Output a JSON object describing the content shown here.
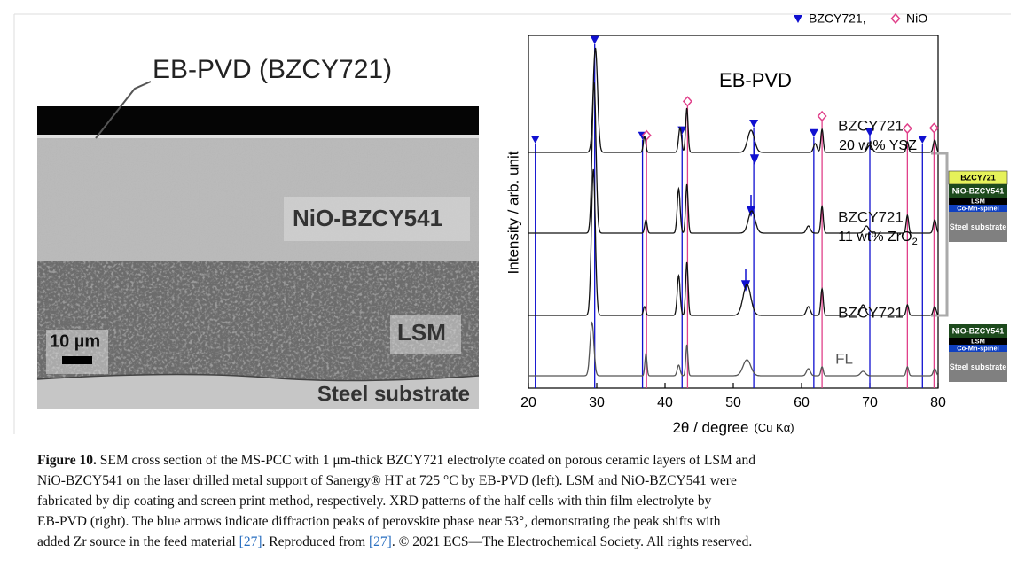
{
  "sem": {
    "labels": [
      "EB-PVD (BZCY721)",
      "NiO-BZCY541",
      "LSM",
      "10 µm",
      "Steel substrate"
    ]
  },
  "chart_data": {
    "type": "xrd",
    "x_label": "2θ / degree",
    "x_label_unit": "(Cu Kα)",
    "y_label": "Intensity / arb. unit",
    "xlim": [
      20,
      80
    ],
    "xticks": [
      20,
      30,
      40,
      50,
      60,
      70,
      80
    ],
    "legend": [
      {
        "name": "BZCY721,",
        "marker": "triangle",
        "color": "#1010d0"
      },
      {
        "name": "NiO",
        "marker": "diamond",
        "color": "#e0408a"
      }
    ],
    "reference_lines": [
      {
        "name": "BZCY721,",
        "color": "#1010d0",
        "x": [
          21,
          29.7,
          36.7,
          42.5,
          53,
          61.8,
          70,
          77.7
        ]
      },
      {
        "name": "NiO",
        "color": "#e0408a",
        "x": [
          37.3,
          43.3,
          63,
          75.5,
          79.4
        ]
      }
    ],
    "annotations": [
      "EB-PVD"
    ],
    "patterns": [
      {
        "label": "BZCY721",
        "sublabel": "20 wt% YSZ",
        "peaks": [
          [
            29.8,
            118,
            0.45
          ],
          [
            37.0,
            18,
            0.25
          ],
          [
            42.2,
            28,
            0.3
          ],
          [
            43.2,
            50,
            0.25
          ],
          [
            52.6,
            25,
            0.7
          ],
          [
            62.0,
            10,
            0.35
          ],
          [
            63.0,
            26,
            0.25
          ],
          [
            70.0,
            8,
            0.5
          ],
          [
            75.5,
            12,
            0.25
          ],
          [
            79.5,
            14,
            0.3
          ]
        ]
      },
      {
        "label": "BZCY721",
        "sublabel": "11 wt% ZrO",
        "sublabel_sub": "2",
        "peaks": [
          [
            29.6,
            170,
            0.4
          ],
          [
            37.2,
            15,
            0.25
          ],
          [
            42.0,
            50,
            0.3
          ],
          [
            43.2,
            55,
            0.25
          ],
          [
            52.7,
            25,
            0.7
          ],
          [
            61.0,
            8,
            0.4
          ],
          [
            63.0,
            30,
            0.25
          ],
          [
            69.5,
            8,
            0.5
          ],
          [
            75.5,
            20,
            0.25
          ],
          [
            79.5,
            15,
            0.3
          ]
        ]
      },
      {
        "label": "BZCY721",
        "peaks": [
          [
            29.5,
            165,
            0.4
          ],
          [
            37.0,
            10,
            0.25
          ],
          [
            42.0,
            45,
            0.3
          ],
          [
            43.2,
            60,
            0.25
          ],
          [
            52.0,
            35,
            0.8
          ],
          [
            61.0,
            10,
            0.4
          ],
          [
            63.0,
            30,
            0.25
          ],
          [
            69.0,
            12,
            0.5
          ],
          [
            75.5,
            12,
            0.25
          ],
          [
            79.5,
            10,
            0.3
          ]
        ]
      },
      {
        "label": "FL",
        "peaks": [
          [
            29.3,
            60,
            0.4
          ],
          [
            37.2,
            25,
            0.22
          ],
          [
            42.0,
            12,
            0.3
          ],
          [
            43.2,
            35,
            0.22
          ],
          [
            52.0,
            18,
            0.8
          ],
          [
            61.0,
            8,
            0.4
          ],
          [
            63.0,
            10,
            0.25
          ],
          [
            69.0,
            5,
            0.5
          ],
          [
            75.5,
            10,
            0.25
          ],
          [
            79.5,
            8,
            0.3
          ]
        ]
      }
    ]
  },
  "stacks": [
    {
      "layers": [
        {
          "name": "BZCY721",
          "color": "#e6f25a"
        },
        {
          "name": "NiO-BZCY541",
          "color": "#1d4a1d"
        },
        {
          "name": "LSM",
          "color": "#000000"
        },
        {
          "name": "Co-Mn-spinel",
          "color": "#1040c0"
        },
        {
          "name": "Steel substrate",
          "color": "#808080"
        }
      ]
    },
    {
      "layers": [
        {
          "name": "NiO-BZCY541",
          "color": "#1d4a1d"
        },
        {
          "name": "LSM",
          "color": "#000000"
        },
        {
          "name": "Co-Mn-spinel",
          "color": "#1040c0"
        },
        {
          "name": "Steel substrate",
          "color": "#808080"
        }
      ]
    }
  ],
  "caption": {
    "label": "Figure 10.",
    "lines": [
      [
        " SEM cross section of the MS-PCC with 1 μm-thick BZCY721 electrolyte coated on porous ceramic layers of LSM and"
      ],
      [
        "NiO-BZCY541 on the laser drilled metal support of Sanergy® HT at 725 °C by EB-PVD (left). LSM and NiO-BZCY541 were"
      ],
      [
        "fabricated by dip coating and screen print method, respectively. XRD patterns of the half cells with thin film electrolyte by"
      ],
      [
        "EB-PVD (right). The blue arrows indicate diffraction peaks of perovskite phase near 53°, demonstrating the peak shifts with"
      ],
      [
        "added Zr source in the feed material ",
        "[27]",
        ". Reproduced from ",
        "[27]",
        ". © 2021 ECS—The Electrochemical Society. All rights reserved."
      ]
    ]
  }
}
